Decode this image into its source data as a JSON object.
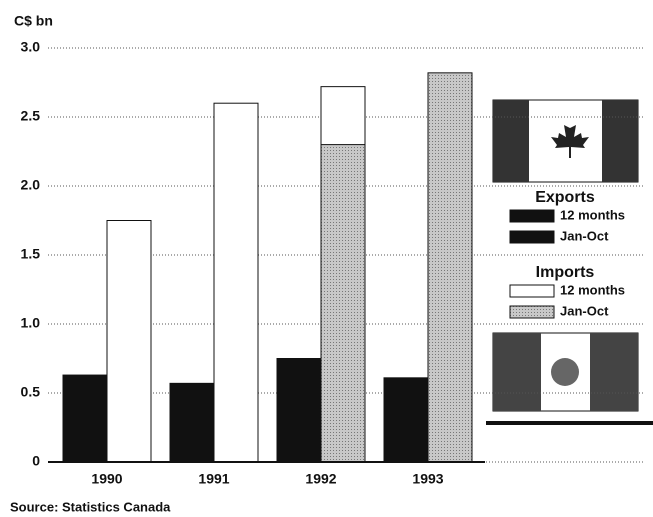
{
  "chart_data": {
    "type": "bar",
    "y_label": "C$ bn",
    "source": "Source: Statistics Canada",
    "categories": [
      "1990",
      "1991",
      "1992",
      "1993"
    ],
    "series": [
      {
        "group": "Exports",
        "name": "12 months",
        "color": "#111111",
        "values": [
          0.63,
          0.57,
          0.75,
          null
        ]
      },
      {
        "group": "Exports",
        "name": "Jan-Oct",
        "color": "#111111",
        "values": [
          null,
          null,
          null,
          0.61
        ]
      },
      {
        "group": "Imports",
        "name": "12 months",
        "color": "#ffffff",
        "values": [
          1.75,
          2.6,
          2.72,
          null
        ]
      },
      {
        "group": "Imports",
        "name": "Jan-Oct",
        "color": "#bdbdbd",
        "values": [
          null,
          null,
          2.3,
          2.82
        ]
      }
    ],
    "ylim": [
      0,
      3
    ],
    "yticks": [
      0,
      {
        "value": 0.5,
        "label": "0.5"
      },
      {
        "value": 1,
        "label": "1.0"
      },
      {
        "value": 1.5,
        "label": "1.5"
      },
      {
        "value": 2,
        "label": "2.0"
      },
      {
        "value": 2.5,
        "label": "2.5"
      },
      {
        "value": 3,
        "label": "3.0"
      }
    ],
    "grid": true
  }
}
